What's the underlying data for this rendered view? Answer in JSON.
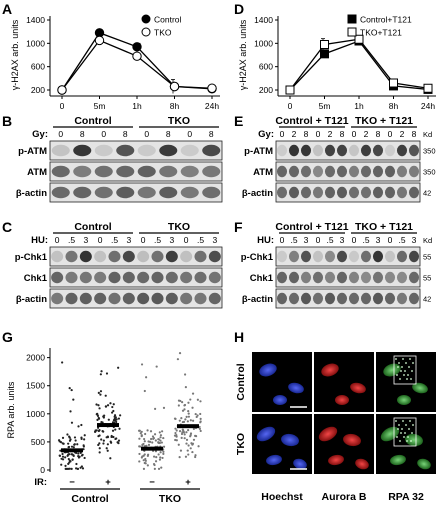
{
  "panels": {
    "A": {
      "label": "A",
      "chart_data": {
        "type": "line",
        "ylabel": "γ-H2AX arb. units",
        "categories": [
          "0",
          "5m",
          "1h",
          "8h",
          "24h"
        ],
        "yticks": [
          "200",
          "600",
          "1000",
          "1400"
        ],
        "ylim": [
          200,
          1400
        ],
        "series": [
          {
            "name": "Control",
            "marker": "filled-circle",
            "values": [
              200,
              1180,
              940,
              260,
              220
            ],
            "errors": [
              0,
              50,
              60,
              40,
              20
            ]
          },
          {
            "name": "TKO",
            "marker": "open-circle",
            "values": [
              200,
              1050,
              780,
              260,
              230
            ],
            "errors": [
              0,
              50,
              50,
              120,
              30
            ]
          }
        ]
      }
    },
    "D": {
      "label": "D",
      "chart_data": {
        "type": "line",
        "ylabel": "γ-H2AX arb. units",
        "categories": [
          "0",
          "5m",
          "1h",
          "8h",
          "24h"
        ],
        "yticks": [
          "200",
          "600",
          "1000",
          "1400"
        ],
        "ylim": [
          200,
          1400
        ],
        "series": [
          {
            "name": "Control+T121",
            "marker": "filled-square",
            "values": [
              200,
              820,
              1040,
              270,
              210
            ],
            "errors": [
              0,
              50,
              50,
              30,
              20
            ]
          },
          {
            "name": "TKO+T121",
            "marker": "open-square",
            "values": [
              200,
              980,
              1070,
              320,
              230
            ],
            "errors": [
              0,
              100,
              60,
              50,
              30
            ]
          }
        ]
      }
    },
    "B": {
      "label": "B",
      "groups": [
        "Control",
        "TKO"
      ],
      "row_title": "Gy:",
      "lanes": [
        "0",
        "8",
        "0",
        "8",
        "0",
        "8",
        "0",
        "8"
      ],
      "bands": [
        "p-ATM",
        "ATM",
        "β-actin"
      ]
    },
    "E": {
      "label": "E",
      "groups": [
        "Control + T121",
        "TKO + T121"
      ],
      "row_title": "Gy:",
      "lanes": [
        "0",
        "2",
        "8",
        "0",
        "2",
        "8",
        "0",
        "2",
        "8",
        "0",
        "2",
        "8"
      ],
      "bands": [
        "p-ATM",
        "ATM",
        "β-actin"
      ],
      "kd_title": "Kd",
      "kd": [
        "350",
        "350",
        "42"
      ]
    },
    "C": {
      "label": "C",
      "groups": [
        "Control",
        "TKO"
      ],
      "row_title": "HU:",
      "lanes": [
        "0",
        ".5",
        "3",
        "0",
        ".5",
        "3",
        "0",
        ".5",
        "3",
        "0",
        ".5",
        "3"
      ],
      "bands": [
        "p-Chk1",
        "Chk1",
        "β-actin"
      ]
    },
    "F": {
      "label": "F",
      "groups": [
        "Control + T121",
        "TKO + T121"
      ],
      "row_title": "HU:",
      "lanes": [
        "0",
        ".5",
        "3",
        "0",
        ".5",
        "3",
        "0",
        ".5",
        "3",
        "0",
        ".5",
        "3"
      ],
      "bands": [
        "p-Chk1",
        "Chk1",
        "β-actin"
      ],
      "kd_title": "Kd",
      "kd": [
        "55",
        "55",
        "42"
      ]
    },
    "G": {
      "label": "G",
      "chart_data": {
        "type": "scatter",
        "ylabel": "RPA arb. units",
        "yticks": [
          "0",
          "500",
          "1000",
          "1500",
          "2000"
        ],
        "ylim": [
          0,
          2100
        ],
        "ir_title": "IR:",
        "ir_labels": [
          "−",
          "+",
          "−",
          "+"
        ],
        "group_labels": [
          "Control",
          "TKO"
        ],
        "medians": [
          350,
          800,
          380,
          780
        ]
      }
    },
    "H": {
      "label": "H",
      "rows": [
        "Control",
        "TKO"
      ],
      "columns": [
        "Hoechst",
        "Aurora B",
        "RPA 32"
      ]
    }
  }
}
